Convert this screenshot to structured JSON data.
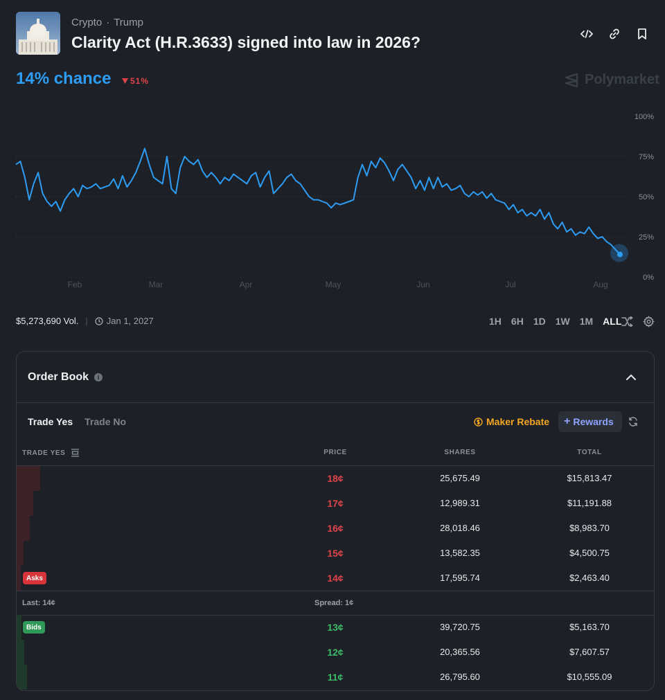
{
  "header": {
    "breadcrumbs": [
      "Crypto",
      "Trump"
    ],
    "title": "Clarity Act (H.R.3633) signed into law in 2026?",
    "chance": "14% chance",
    "delta": "51%",
    "brand": "Polymarket"
  },
  "chart_data": {
    "type": "line",
    "x_ticks": [
      "Feb",
      "Mar",
      "Apr",
      "May",
      "Jun",
      "Jul",
      "Aug"
    ],
    "y_ticks": [
      "100%",
      "75%",
      "50%",
      "25%",
      "0%"
    ],
    "ylim": [
      0,
      100
    ],
    "series": [
      {
        "color": "#2d9cf4",
        "values": [
          70,
          72,
          62,
          48,
          58,
          65,
          52,
          47,
          44,
          47,
          41,
          48,
          52,
          55,
          50,
          57,
          55,
          56,
          58,
          55,
          56,
          57,
          61,
          55,
          63,
          56,
          60,
          65,
          72,
          80,
          70,
          62,
          60,
          58,
          75,
          55,
          52,
          68,
          75,
          72,
          70,
          73,
          66,
          62,
          65,
          62,
          58,
          62,
          60,
          64,
          62,
          60,
          58,
          63,
          65,
          56,
          62,
          66,
          52,
          55,
          58,
          62,
          64,
          60,
          58,
          54,
          50,
          48,
          48,
          47,
          46,
          43,
          46,
          45,
          46,
          47,
          48,
          62,
          70,
          63,
          72,
          68,
          74,
          71,
          66,
          60,
          67,
          70,
          66,
          62,
          55,
          60,
          54,
          62,
          55,
          62,
          56,
          58,
          54,
          55,
          57,
          52,
          50,
          53,
          51,
          53,
          49,
          52,
          48,
          47,
          46,
          42,
          45,
          40,
          42,
          38,
          40,
          38,
          42,
          36,
          40,
          33,
          30,
          34,
          28,
          30,
          26,
          28,
          27,
          31,
          27,
          24,
          25,
          22,
          20,
          17,
          14
        ]
      }
    ],
    "end_value": 14
  },
  "footer": {
    "volume": "$5,273,690 Vol.",
    "end_date": "Jan 1, 2027",
    "ranges": [
      "1H",
      "6H",
      "1D",
      "1W",
      "1M",
      "ALL"
    ],
    "active_range": "ALL"
  },
  "orderbook": {
    "title": "Order Book",
    "tab_yes": "Trade Yes",
    "tab_no": "Trade No",
    "maker_rebate": "Maker Rebate",
    "rewards": "Rewards",
    "columns": {
      "trade": "TRADE YES",
      "price": "PRICE",
      "shares": "SHARES",
      "total": "TOTAL"
    },
    "asks": [
      {
        "price": "18¢",
        "shares": "25,675.49",
        "total": "$15,813.47",
        "depth": 0.92
      },
      {
        "price": "17¢",
        "shares": "12,989.31",
        "total": "$11,191.88",
        "depth": 0.65
      },
      {
        "price": "16¢",
        "shares": "28,018.46",
        "total": "$8,983.70",
        "depth": 0.52
      },
      {
        "price": "15¢",
        "shares": "13,582.35",
        "total": "$4,500.75",
        "depth": 0.28
      },
      {
        "price": "14¢",
        "shares": "17,595.74",
        "total": "$2,463.40",
        "depth": 0.16
      }
    ],
    "asks_label": "Asks",
    "last": "Last: 14¢",
    "spread": "Spread: 1¢",
    "bids_label": "Bids",
    "bids": [
      {
        "price": "13¢",
        "shares": "39,720.75",
        "total": "$5,163.70",
        "depth": 0.2
      },
      {
        "price": "12¢",
        "shares": "20,365.56",
        "total": "$7,607.57",
        "depth": 0.3
      },
      {
        "price": "11¢",
        "shares": "26,795.60",
        "total": "$10,555.09",
        "depth": 0.42
      }
    ]
  }
}
